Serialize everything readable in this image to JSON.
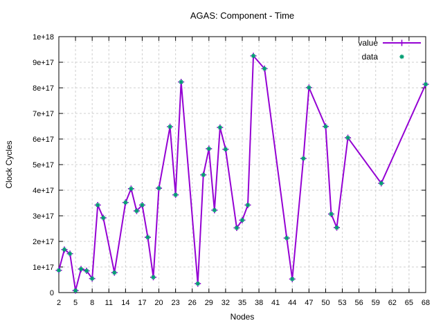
{
  "window": {
    "background": "#ffffff"
  },
  "chart_data": {
    "type": "line",
    "title": "AGAS: Component - Time",
    "xlabel": "Nodes",
    "ylabel": "Clock Cycles",
    "xlim": [
      2,
      68
    ],
    "ylim": [
      0,
      1e+18
    ],
    "grid": true,
    "legend_position": "top-right",
    "xticks": [
      2,
      5,
      8,
      11,
      14,
      17,
      20,
      23,
      26,
      29,
      32,
      35,
      38,
      41,
      44,
      47,
      50,
      53,
      56,
      59,
      62,
      65,
      68
    ],
    "ytick_labels": [
      "0",
      "1e+17",
      "2e+17",
      "3e+17",
      "4e+17",
      "5e+17",
      "6e+17",
      "7e+17",
      "8e+17",
      "9e+17",
      "1e+18"
    ],
    "x": [
      2,
      3,
      4,
      5,
      6,
      7,
      8,
      9,
      10,
      12,
      14,
      15,
      16,
      17,
      18,
      19,
      20,
      22,
      23,
      24,
      27,
      28,
      29,
      30,
      31,
      32,
      34,
      35,
      36,
      37,
      39,
      43,
      44,
      46,
      47,
      50,
      51,
      52,
      54,
      60,
      68
    ],
    "y": [
      8.7e+16,
      1.68e+17,
      1.52e+17,
      8000000000000000.0,
      9.2e+16,
      8.5e+16,
      5.5e+16,
      3.42e+17,
      2.92e+17,
      7.8e+16,
      3.52e+17,
      4.06e+17,
      3.19e+17,
      3.42e+17,
      2.16e+17,
      6e+16,
      4.08e+17,
      6.48e+17,
      3.82e+17,
      8.23e+17,
      3.5e+16,
      4.6e+17,
      5.62e+17,
      3.22e+17,
      6.45e+17,
      5.6e+17,
      2.53e+17,
      2.83e+17,
      3.42e+17,
      9.25e+17,
      8.75e+17,
      2.13e+17,
      5.3e+16,
      5.24e+17,
      8.01e+17,
      6.49e+17,
      3.07e+17,
      2.54e+17,
      6.05e+17,
      4.27e+17,
      8.14e+17
    ],
    "series": [
      {
        "name": "value",
        "style": "line-with-plus-markers",
        "color": "#9400d3"
      },
      {
        "name": "data",
        "style": "asterisk-markers",
        "color": "#009e73"
      }
    ],
    "colors": {
      "frame": "#000000",
      "grid": "#cfcfcf",
      "text": "#000000"
    }
  }
}
